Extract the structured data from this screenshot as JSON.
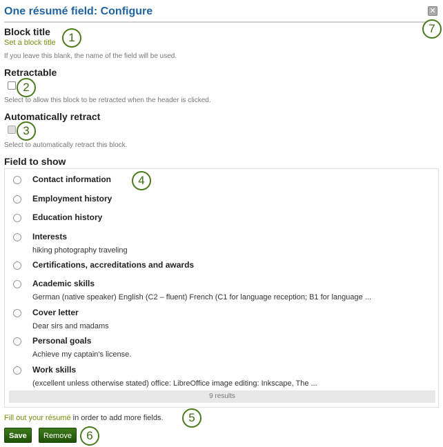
{
  "header": {
    "title": "One résumé field: Configure",
    "close_icon": "close-icon"
  },
  "block_title": {
    "label": "Block title",
    "link": "Set a block title",
    "description": "If you leave this blank, the name of the field will be used."
  },
  "retractable": {
    "label": "Retractable",
    "checked": false,
    "description": "Select to allow this block to be retracted when the header is clicked."
  },
  "auto_retract": {
    "label": "Automatically retract",
    "checked": false,
    "disabled": true,
    "description": "Select to automatically retract this block."
  },
  "field_to_show": {
    "label": "Field to show",
    "options": [
      {
        "label": "Contact information",
        "detail": ""
      },
      {
        "label": "Employment history",
        "detail": ""
      },
      {
        "label": "Education history",
        "detail": ""
      },
      {
        "label": "Interests",
        "detail": "hiking photography traveling"
      },
      {
        "label": "Certifications, accreditations and awards",
        "detail": ""
      },
      {
        "label": "Academic skills",
        "detail": "German (native speaker) English (C2 – fluent) French (C1 for language reception; B1 for language ..."
      },
      {
        "label": "Cover letter",
        "detail": "Dear sirs and madams"
      },
      {
        "label": "Personal goals",
        "detail": "Achieve my captain's license."
      },
      {
        "label": "Work skills",
        "detail": "(excellent unless otherwise stated) office: LibreOffice image editing: Inkscape, The ..."
      }
    ],
    "results": "9 results"
  },
  "note": {
    "link": "Fill out your résumé",
    "text": " in order to add more fields."
  },
  "buttons": {
    "save": "Save",
    "remove": "Remove"
  },
  "annotations": [
    "1",
    "2",
    "3",
    "4",
    "5",
    "6",
    "7"
  ]
}
